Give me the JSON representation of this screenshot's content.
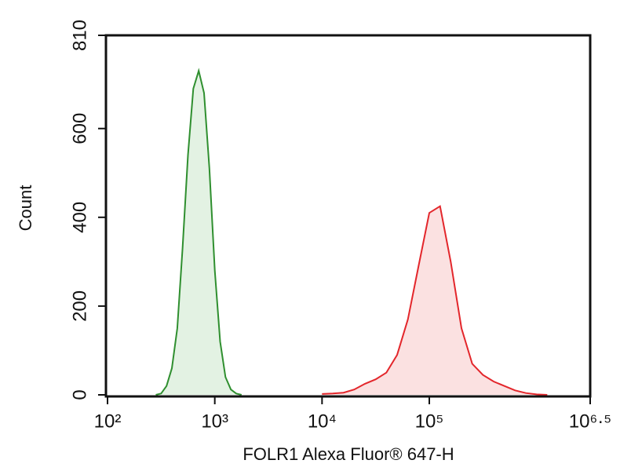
{
  "chart_data": {
    "type": "area",
    "x_label": "FOLR1 Alexa Fluor® 647-H",
    "y_label": "Count",
    "x_log": true,
    "xlim": [
      100,
      3162277.66
    ],
    "xticks": [
      {
        "value": 100,
        "label": "10²"
      },
      {
        "value": 1000,
        "label": "10³"
      },
      {
        "value": 10000,
        "label": "10⁴"
      },
      {
        "value": 100000,
        "label": "10⁵"
      },
      {
        "value": 3162277.66,
        "label": "10⁶·⁵"
      }
    ],
    "ylim": [
      0,
      810
    ],
    "yticks": [
      0,
      200,
      400,
      600,
      810
    ],
    "grid": false,
    "series": [
      {
        "color": "#2f8f2f",
        "fill_color": "#e3f2e3",
        "x": [
          282,
          316,
          355,
          398,
          447,
          501,
          562,
          631,
          708,
          794,
          891,
          1000,
          1122,
          1259,
          1413,
          1585,
          1778
        ],
        "values": [
          0,
          3,
          20,
          60,
          150,
          330,
          540,
          690,
          730,
          680,
          510,
          280,
          120,
          40,
          12,
          3,
          0
        ]
      },
      {
        "color": "#e3262b",
        "fill_color": "#fbe1e1",
        "x": [
          10000,
          12589,
          15849,
          19953,
          25119,
          31623,
          39811,
          50119,
          63096,
          79433,
          100000,
          125893,
          158489,
          199526,
          251189,
          316228,
          398107,
          501187,
          630957,
          794328,
          1000000,
          1258925
        ],
        "values": [
          2,
          3,
          5,
          12,
          25,
          35,
          50,
          90,
          170,
          290,
          410,
          425,
          300,
          150,
          70,
          45,
          30,
          20,
          10,
          4,
          1,
          0
        ]
      }
    ]
  }
}
